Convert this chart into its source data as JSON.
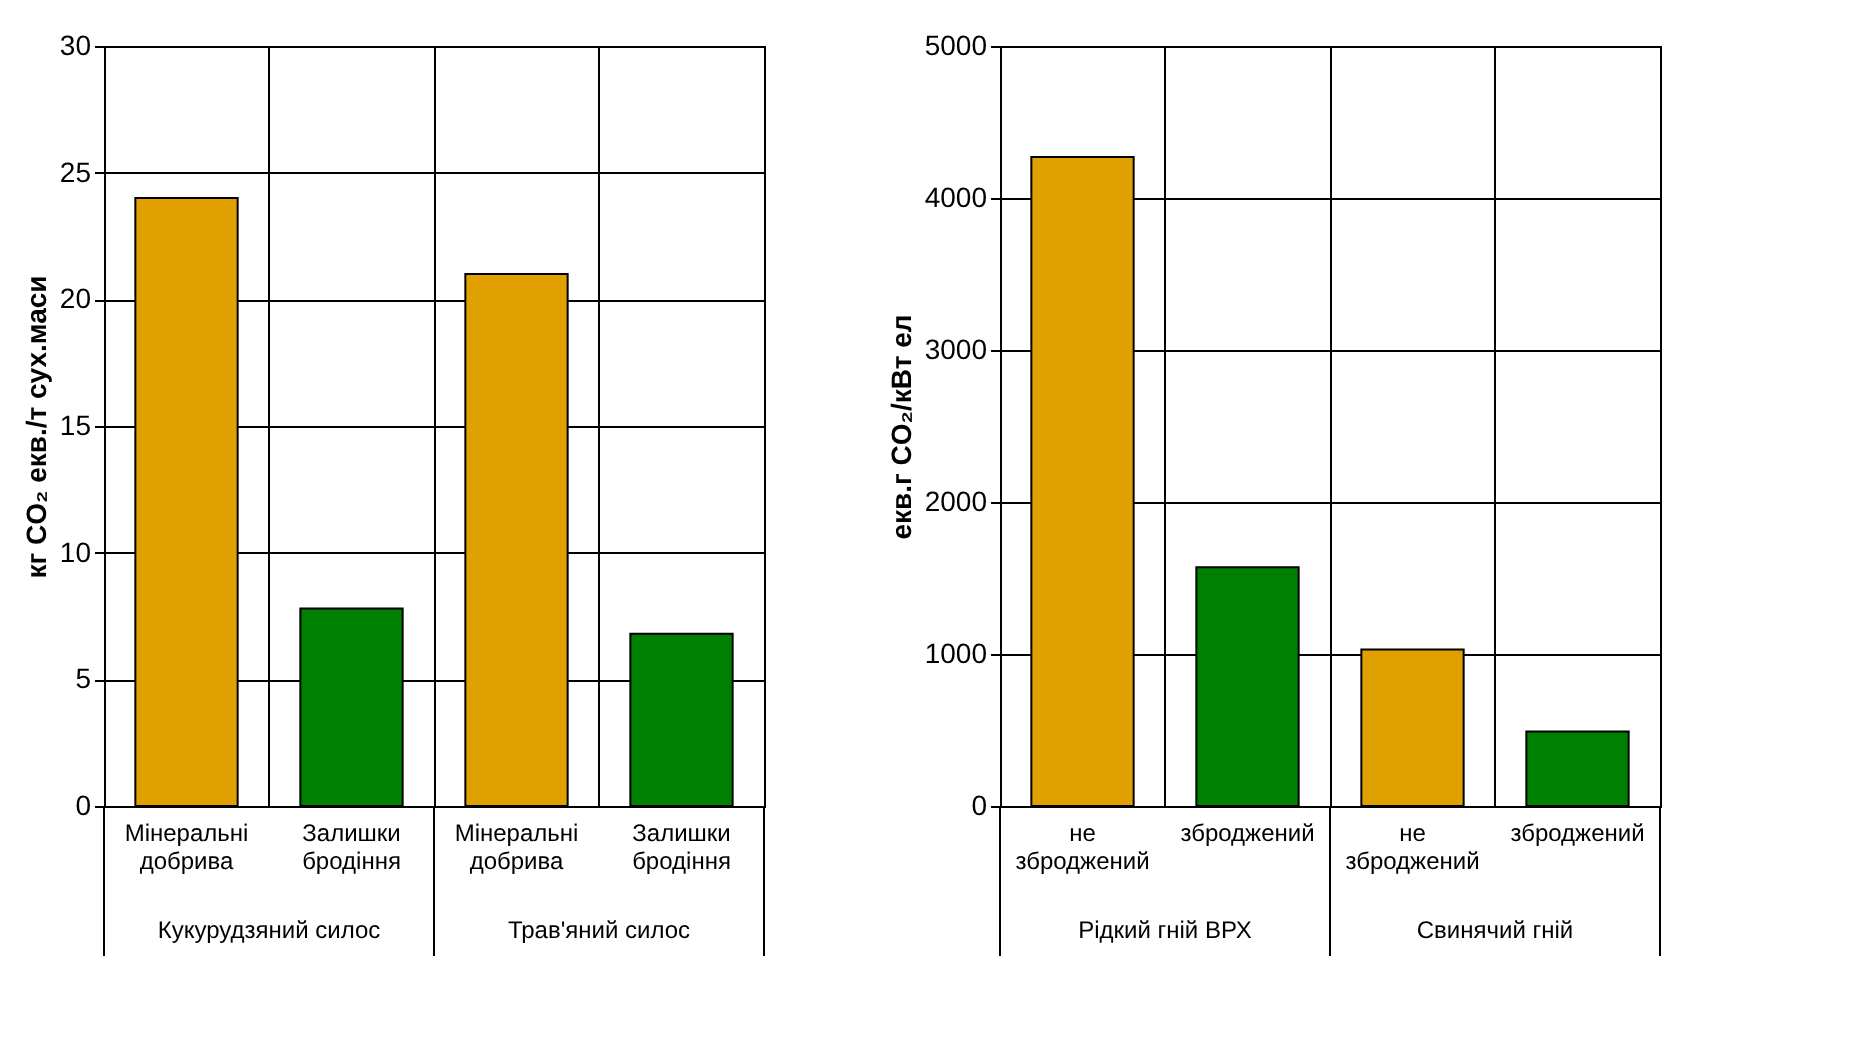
{
  "chart_data": [
    {
      "type": "bar",
      "ylabel": "кг CO₂ екв./т сух.маси",
      "categories": [
        "Мінеральні добрива",
        "Залишки бродіння",
        "Мінеральні добрива",
        "Залишки бродіння"
      ],
      "values": [
        24,
        7.8,
        21,
        6.8
      ],
      "colors": [
        "#e0a000",
        "#008000",
        "#e0a000",
        "#008000"
      ],
      "ylim": [
        0,
        30
      ],
      "yticks": [
        0,
        5,
        10,
        15,
        20,
        25,
        30
      ],
      "grid": true,
      "annotations": [
        "Кукурудзяний силос",
        "Трав'яний силос"
      ]
    },
    {
      "type": "bar",
      "ylabel": "екв.г CO₂/кВт ел",
      "categories": [
        "не зброджений",
        "зброджений",
        "не зброджений",
        "зброджений"
      ],
      "values": [
        4270,
        1570,
        1030,
        490
      ],
      "colors": [
        "#e0a000",
        "#008000",
        "#e0a000",
        "#008000"
      ],
      "ylim": [
        0,
        5000
      ],
      "yticks": [
        0,
        1000,
        2000,
        3000,
        4000,
        5000
      ],
      "grid": true,
      "annotations": [
        "Рідкий гній ВРХ",
        "Свинячий гній"
      ]
    }
  ]
}
